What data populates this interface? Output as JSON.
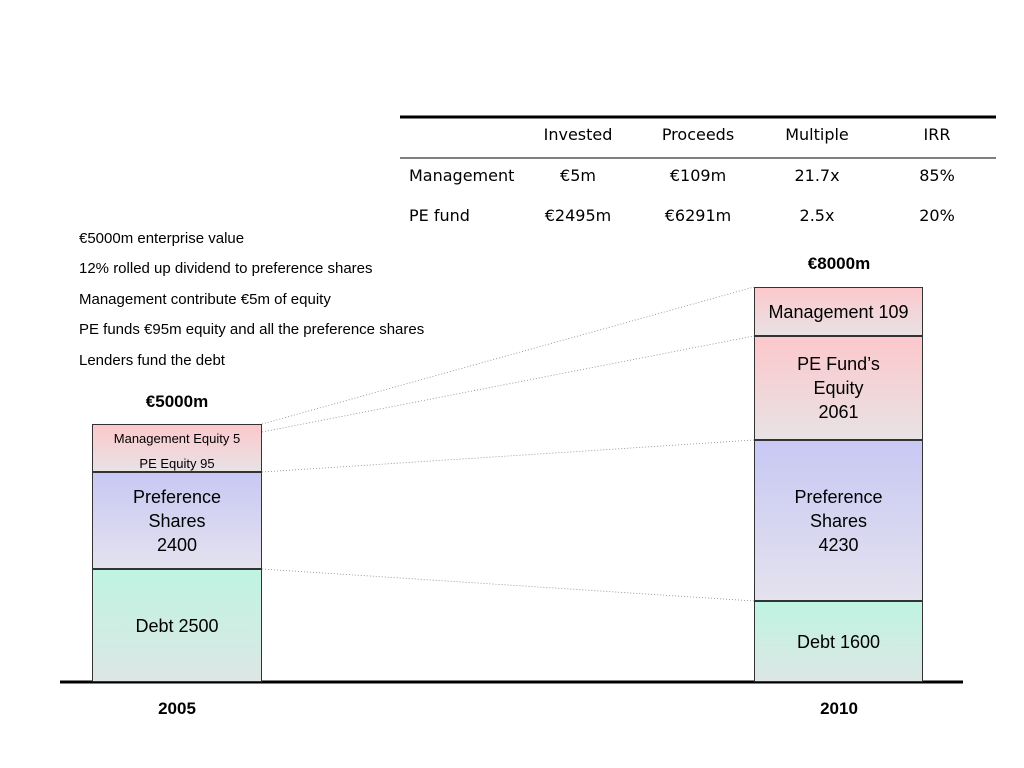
{
  "table": {
    "columns": [
      "Invested",
      "Proceeds",
      "Multiple",
      "IRR"
    ],
    "rows": [
      [
        "Management",
        "€5m",
        "€109m",
        "21.7x",
        "85%"
      ],
      [
        "PE fund",
        "€2495m",
        "€6291m",
        "2.5x",
        "20%"
      ]
    ]
  },
  "notes": [
    "€5000m enterprise value",
    "12% rolled up dividend to preference shares",
    "Management contribute €5m of equity",
    "PE funds €95m equity and all the preference shares",
    "Lenders fund the debt"
  ],
  "stacks": [
    {
      "year": "2005",
      "total": "€5000m",
      "blocks": [
        {
          "lines": [
            "Management Equity 5",
            "PE Equity 95"
          ]
        },
        {
          "lines": [
            "Preference",
            "Shares",
            "2400"
          ]
        },
        {
          "lines": [
            "Debt 2500"
          ]
        }
      ]
    },
    {
      "year": "2010",
      "total": "€8000m",
      "blocks": [
        {
          "lines": [
            "Management 109"
          ]
        },
        {
          "lines": [
            "PE Fund’s",
            "Equity",
            "2061"
          ]
        },
        {
          "lines": [
            "Preference",
            "Shares",
            "4230"
          ]
        },
        {
          "lines": [
            "Debt 1600"
          ]
        }
      ]
    }
  ]
}
